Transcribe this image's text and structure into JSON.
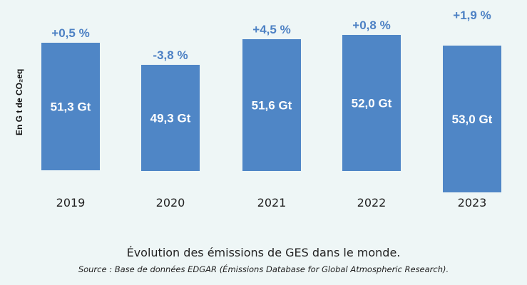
{
  "chart_data": {
    "type": "bar",
    "categories": [
      "2019",
      "2020",
      "2021",
      "2022",
      "2023"
    ],
    "values": [
      51.3,
      49.3,
      51.6,
      52.0,
      53.0
    ],
    "value_labels": [
      "51,3 Gt",
      "49,3 Gt",
      "51,6 Gt",
      "52,0 Gt",
      "53,0 Gt"
    ],
    "change_labels": [
      "+0,5 %",
      "-3,8 %",
      "+4,5 %",
      "+0,8 %",
      "+1,9 %"
    ],
    "ylabel": "En G t de CO₂eq",
    "xlabel": "",
    "grid": false,
    "bar_color": "#4f86c6",
    "change_color": "#4d81c4"
  },
  "caption": {
    "title": "Évolution des émissions de GES dans le monde.",
    "source": "Source : Base de données EDGAR (Émissions Database for Global Atmospheric Research)."
  }
}
